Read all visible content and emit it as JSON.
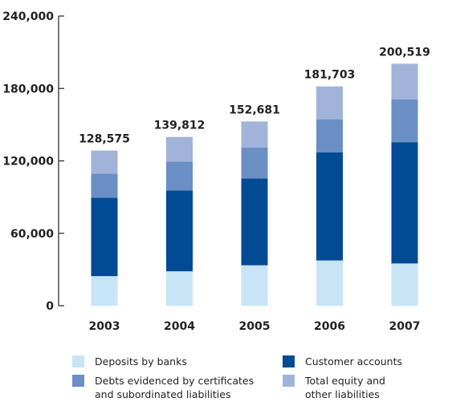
{
  "chart_data": {
    "type": "bar",
    "stacked": true,
    "categories": [
      "2003",
      "2004",
      "2005",
      "2006",
      "2007"
    ],
    "totals": [
      "128,575",
      "139,812",
      "152,681",
      "181,703",
      "200,519"
    ],
    "series": [
      {
        "name": "Deposits by banks",
        "values": [
          24500,
          28500,
          33500,
          37500,
          35000
        ],
        "color": "#c7e5f6"
      },
      {
        "name": "Customer accounts",
        "values": [
          65000,
          67000,
          72000,
          89500,
          100500
        ],
        "color": "#004b93"
      },
      {
        "name": "Debts evidenced by certificates\nand subordinated liabilities",
        "values": [
          20000,
          24000,
          25500,
          27500,
          35500
        ],
        "color": "#6a8fc5"
      },
      {
        "name": "Total equity and\nother liabilities",
        "values": [
          19075,
          20312,
          21681,
          27203,
          29519
        ],
        "color": "#a1b3d9"
      }
    ],
    "yticks": [
      "0",
      "60,000",
      "120,000",
      "180,000",
      "240,000"
    ],
    "ytick_values": [
      0,
      60000,
      120000,
      180000,
      240000
    ],
    "ylim": [
      0,
      240000
    ],
    "legend_order": [
      0,
      1,
      2,
      3
    ],
    "legend_placement": "bottom",
    "grid": false
  }
}
